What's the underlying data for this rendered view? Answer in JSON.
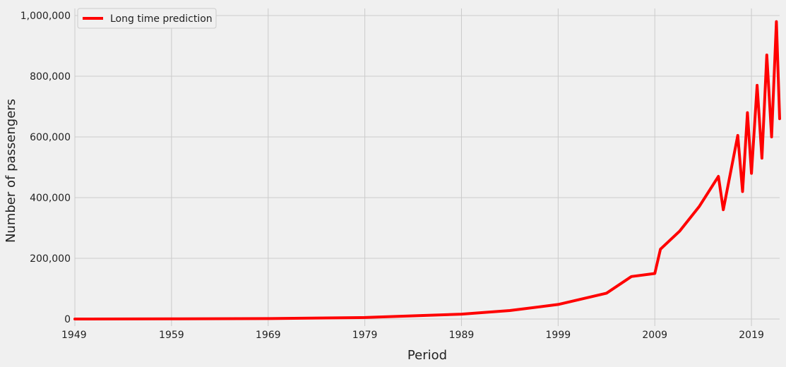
{
  "chart_data": {
    "type": "line",
    "title": "",
    "xlabel": "Period",
    "ylabel": "Number of passengers",
    "xlim": [
      "1949-01",
      "2021-12"
    ],
    "ylim": [
      0,
      1000000
    ],
    "x_ticks": [
      {
        "value": "1949-01",
        "label": "1949"
      },
      {
        "value": "1959-01",
        "label": "1959"
      },
      {
        "value": "1969-01",
        "label": "1969"
      },
      {
        "value": "1979-01",
        "label": "1979"
      },
      {
        "value": "1989-01",
        "label": "1989"
      },
      {
        "value": "1999-01",
        "label": "1999"
      },
      {
        "value": "2009-01",
        "label": "2009"
      },
      {
        "value": "2019-01",
        "label": "2019"
      }
    ],
    "y_ticks": [
      {
        "value": 0,
        "label": "0"
      },
      {
        "value": 200000,
        "label": "200,000"
      },
      {
        "value": 400000,
        "label": "400,000"
      },
      {
        "value": 600000,
        "label": "600,000"
      },
      {
        "value": 800000,
        "label": "800,000"
      },
      {
        "value": 1000000,
        "label": "1,000,000"
      }
    ],
    "grid": true,
    "legend_position": "top-left",
    "series": [
      {
        "name": "Long time prediction",
        "color": "#ff0000",
        "points": [
          {
            "x": "1949-01",
            "y": 110
          },
          {
            "x": "1959-01",
            "y": 400
          },
          {
            "x": "1969-01",
            "y": 1500
          },
          {
            "x": "1979-01",
            "y": 5000
          },
          {
            "x": "1984-07",
            "y": 11000
          },
          {
            "x": "1989-01",
            "y": 16000
          },
          {
            "x": "1994-01",
            "y": 28000
          },
          {
            "x": "1999-01",
            "y": 48000
          },
          {
            "x": "2004-01",
            "y": 85000
          },
          {
            "x": "2006-08",
            "y": 140000
          },
          {
            "x": "2009-01",
            "y": 150000
          },
          {
            "x": "2009-08",
            "y": 230000
          },
          {
            "x": "2011-08",
            "y": 290000
          },
          {
            "x": "2013-08",
            "y": 370000
          },
          {
            "x": "2015-08",
            "y": 470000
          },
          {
            "x": "2016-02",
            "y": 360000
          },
          {
            "x": "2017-08",
            "y": 605000
          },
          {
            "x": "2018-02",
            "y": 420000
          },
          {
            "x": "2018-08",
            "y": 680000
          },
          {
            "x": "2019-01",
            "y": 480000
          },
          {
            "x": "2019-08",
            "y": 770000
          },
          {
            "x": "2020-02",
            "y": 530000
          },
          {
            "x": "2020-08",
            "y": 870000
          },
          {
            "x": "2021-02",
            "y": 600000
          },
          {
            "x": "2021-08",
            "y": 980000
          },
          {
            "x": "2021-12",
            "y": 660000
          }
        ]
      }
    ]
  }
}
